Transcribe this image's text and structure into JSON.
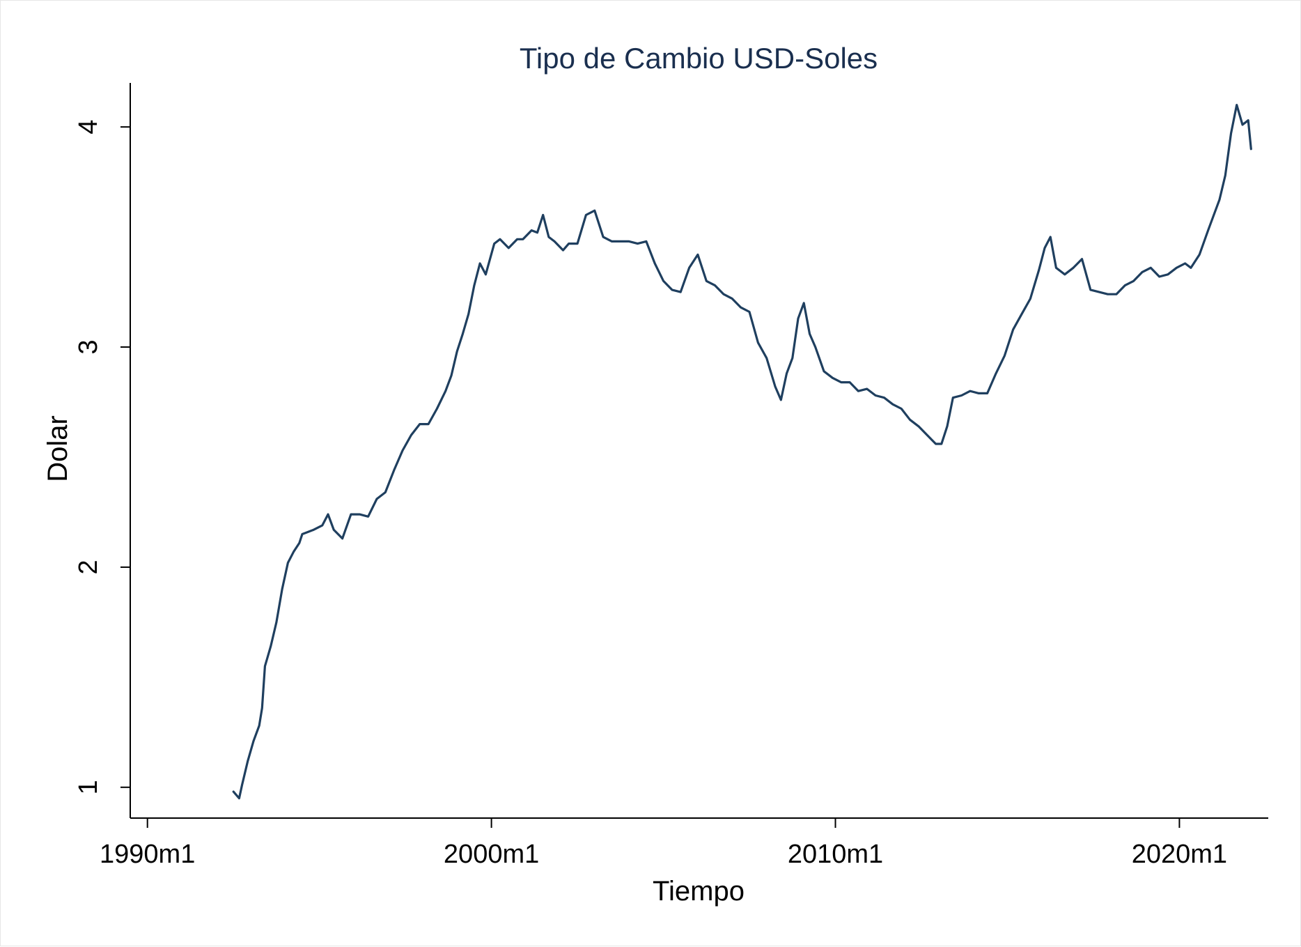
{
  "colors": {
    "background": "#ffffff",
    "line": "#1f3f5f",
    "title": "#1a2f4f",
    "axis": "#000000"
  },
  "chart_data": {
    "type": "line",
    "title": "Tipo de Cambio USD-Soles",
    "xlabel": "Tiempo",
    "ylabel": "Dolar",
    "grid": false,
    "legend": "none",
    "xlim": [
      "1989m7",
      "2022m8"
    ],
    "ylim": [
      0.86,
      4.2
    ],
    "x_ticks": [
      {
        "value": "1990m1",
        "label": "1990m1"
      },
      {
        "value": "2000m1",
        "label": "2000m1"
      },
      {
        "value": "2010m1",
        "label": "2010m1"
      },
      {
        "value": "2020m1",
        "label": "2020m1"
      }
    ],
    "y_ticks": [
      {
        "value": 1,
        "label": "1"
      },
      {
        "value": 2,
        "label": "2"
      },
      {
        "value": 3,
        "label": "3"
      },
      {
        "value": 4,
        "label": "4"
      }
    ],
    "series": [
      {
        "x": [
          "1992m7",
          "1992m9",
          "1992m10",
          "1992m12",
          "1993m2",
          "1993m4",
          "1993m5",
          "1993m6",
          "1993m8",
          "1993m10",
          "1993m12",
          "1994m2",
          "1994m4",
          "1994m6",
          "1994m7",
          "1994m9",
          "1994m11",
          "1995m2",
          "1995m4",
          "1995m6",
          "1995m9",
          "1995m12",
          "1996m3",
          "1996m6",
          "1996m9",
          "1996m12",
          "1997m3",
          "1997m6",
          "1997m9",
          "1997m12",
          "1998m3",
          "1998m6",
          "1998m9",
          "1998m11",
          "1999m1",
          "1999m3",
          "1999m5",
          "1999m7",
          "1999m9",
          "1999m11",
          "2000m2",
          "2000m4",
          "2000m7",
          "2000m10",
          "2000m12",
          "2001m3",
          "2001m5",
          "2001m7",
          "2001m9",
          "2001m11",
          "2002m2",
          "2002m4",
          "2002m7",
          "2002m10",
          "2003m1",
          "2003m4",
          "2003m7",
          "2003m10",
          "2004m1",
          "2004m4",
          "2004m7",
          "2004m10",
          "2005m1",
          "2005m4",
          "2005m7",
          "2005m10",
          "2006m1",
          "2006m4",
          "2006m7",
          "2006m10",
          "2007m1",
          "2007m4",
          "2007m7",
          "2007m10",
          "2008m1",
          "2008m4",
          "2008m6",
          "2008m8",
          "2008m10",
          "2008m12",
          "2009m2",
          "2009m4",
          "2009m6",
          "2009m9",
          "2009m12",
          "2010m3",
          "2010m6",
          "2010m9",
          "2010m12",
          "2011m3",
          "2011m6",
          "2011m9",
          "2011m12",
          "2012m3",
          "2012m6",
          "2012m9",
          "2012m12",
          "2013m2",
          "2013m4",
          "2013m6",
          "2013m9",
          "2013m12",
          "2014m3",
          "2014m6",
          "2014m9",
          "2014m12",
          "2015m3",
          "2015m6",
          "2015m9",
          "2015m12",
          "2016m2",
          "2016m4",
          "2016m6",
          "2016m9",
          "2016m12",
          "2017m3",
          "2017m6",
          "2017m9",
          "2017m12",
          "2018m3",
          "2018m6",
          "2018m9",
          "2018m12",
          "2019m3",
          "2019m6",
          "2019m9",
          "2019m12",
          "2020m3",
          "2020m5",
          "2020m8",
          "2020m11",
          "2021m1",
          "2021m3",
          "2021m5",
          "2021m7",
          "2021m9",
          "2021m11",
          "2022m1",
          "2022m2"
        ],
        "values": [
          0.98,
          0.95,
          1.01,
          1.12,
          1.21,
          1.28,
          1.36,
          1.55,
          1.64,
          1.75,
          1.9,
          2.02,
          2.07,
          2.11,
          2.15,
          2.16,
          2.17,
          2.19,
          2.24,
          2.17,
          2.13,
          2.24,
          2.24,
          2.23,
          2.31,
          2.34,
          2.44,
          2.53,
          2.6,
          2.65,
          2.65,
          2.72,
          2.8,
          2.87,
          2.98,
          3.06,
          3.15,
          3.28,
          3.38,
          3.33,
          3.47,
          3.49,
          3.45,
          3.49,
          3.49,
          3.53,
          3.52,
          3.6,
          3.5,
          3.48,
          3.44,
          3.47,
          3.47,
          3.6,
          3.62,
          3.5,
          3.48,
          3.48,
          3.48,
          3.47,
          3.48,
          3.38,
          3.3,
          3.26,
          3.25,
          3.36,
          3.42,
          3.3,
          3.28,
          3.24,
          3.22,
          3.18,
          3.16,
          3.02,
          2.95,
          2.82,
          2.76,
          2.88,
          2.95,
          3.13,
          3.2,
          3.06,
          3.0,
          2.89,
          2.86,
          2.84,
          2.84,
          2.8,
          2.81,
          2.78,
          2.77,
          2.74,
          2.72,
          2.67,
          2.64,
          2.6,
          2.56,
          2.56,
          2.64,
          2.77,
          2.78,
          2.8,
          2.79,
          2.79,
          2.88,
          2.96,
          3.08,
          3.15,
          3.22,
          3.35,
          3.45,
          3.5,
          3.36,
          3.33,
          3.36,
          3.4,
          3.26,
          3.25,
          3.24,
          3.24,
          3.28,
          3.3,
          3.34,
          3.36,
          3.32,
          3.33,
          3.36,
          3.38,
          3.36,
          3.42,
          3.53,
          3.6,
          3.67,
          3.78,
          3.97,
          4.1,
          4.01,
          4.03,
          3.9
        ]
      }
    ]
  }
}
